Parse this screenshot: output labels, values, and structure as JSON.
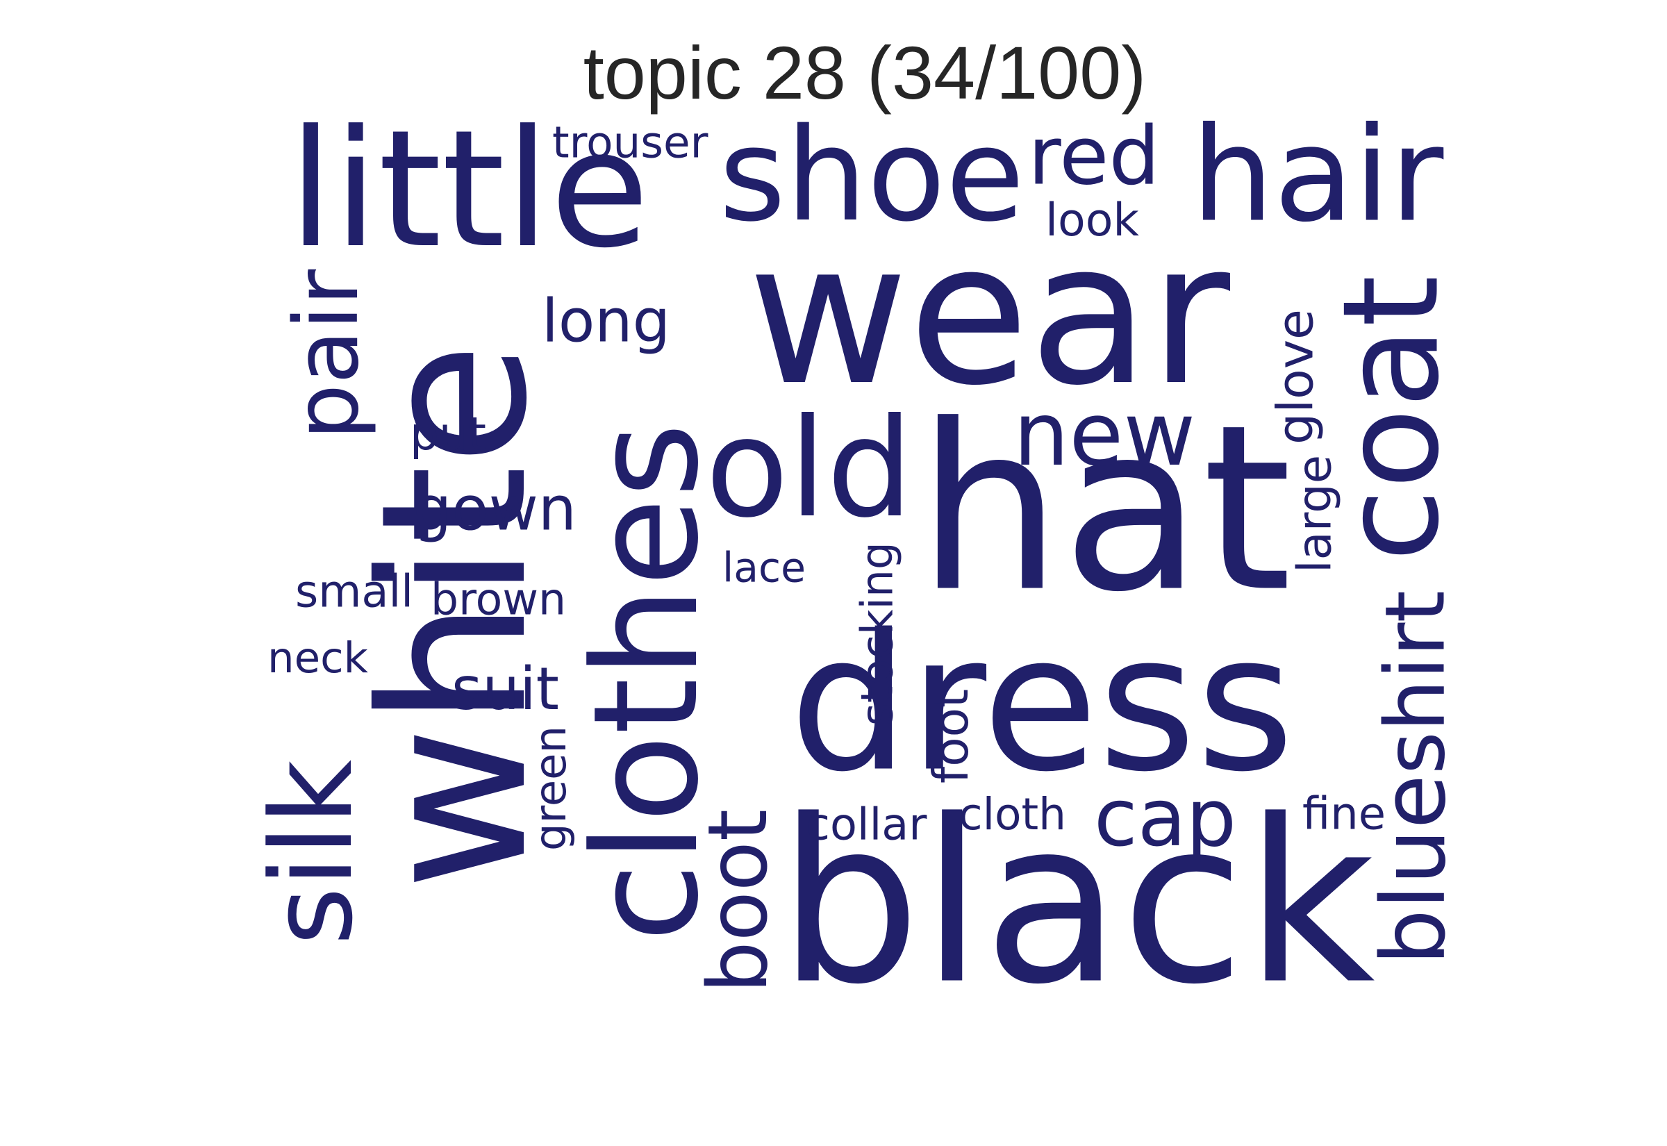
{
  "title": "topic 28 (34/100)",
  "color": "#21206a",
  "words": [
    {
      "text": "dress",
      "name": "word-dress"
    },
    {
      "text": "black",
      "name": "word-black"
    },
    {
      "text": "wear",
      "name": "word-wear"
    },
    {
      "text": "white",
      "name": "word-white"
    },
    {
      "text": "hat",
      "name": "word-hat"
    },
    {
      "text": "clothes",
      "name": "word-clothes"
    },
    {
      "text": "little",
      "name": "word-little"
    },
    {
      "text": "shoe",
      "name": "word-shoe"
    },
    {
      "text": "hair",
      "name": "word-hair"
    },
    {
      "text": "coat",
      "name": "word-coat"
    },
    {
      "text": "old",
      "name": "word-old"
    },
    {
      "text": "new",
      "name": "word-new"
    },
    {
      "text": "red",
      "name": "word-red"
    },
    {
      "text": "pair",
      "name": "word-pair"
    },
    {
      "text": "silk",
      "name": "word-silk"
    },
    {
      "text": "shirt",
      "name": "word-shirt"
    },
    {
      "text": "blue",
      "name": "word-blue"
    },
    {
      "text": "boot",
      "name": "word-boot"
    },
    {
      "text": "cap",
      "name": "word-cap"
    },
    {
      "text": "long",
      "name": "word-long"
    },
    {
      "text": "gown",
      "name": "word-gown"
    },
    {
      "text": "suit",
      "name": "word-suit"
    },
    {
      "text": "glove",
      "name": "word-glove"
    },
    {
      "text": "brown",
      "name": "word-brown"
    },
    {
      "text": "small",
      "name": "word-small"
    },
    {
      "text": "neck",
      "name": "word-neck"
    },
    {
      "text": "lace",
      "name": "word-lace"
    },
    {
      "text": "stocking",
      "name": "word-stocking"
    },
    {
      "text": "foot",
      "name": "word-foot"
    },
    {
      "text": "collar",
      "name": "word-collar"
    },
    {
      "text": "cloth",
      "name": "word-cloth"
    },
    {
      "text": "fine",
      "name": "word-fine"
    },
    {
      "text": "large",
      "name": "word-large"
    },
    {
      "text": "green",
      "name": "word-green"
    },
    {
      "text": "put",
      "name": "word-put"
    },
    {
      "text": "look",
      "name": "word-look"
    },
    {
      "text": "trouser",
      "name": "word-trouser"
    }
  ]
}
